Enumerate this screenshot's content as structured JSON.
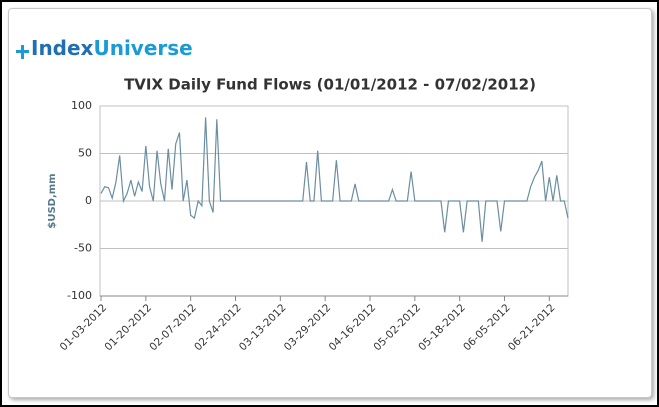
{
  "logo": [
    "Index",
    "Universe"
  ],
  "chart_data": {
    "type": "line",
    "title": "TVIX Daily Fund Flows (01/01/2012 - 07/02/2012)",
    "y_label": "$USD,mm",
    "categories": [
      "01-03-2012",
      null,
      null,
      null,
      null,
      null,
      null,
      null,
      null,
      null,
      null,
      null,
      "01-20-2012",
      null,
      null,
      null,
      null,
      null,
      null,
      null,
      null,
      null,
      null,
      null,
      "02-07-2012",
      null,
      null,
      null,
      null,
      null,
      null,
      null,
      null,
      null,
      null,
      null,
      "02-24-2012",
      null,
      null,
      null,
      null,
      null,
      null,
      null,
      null,
      null,
      null,
      null,
      "03-13-2012",
      null,
      null,
      null,
      null,
      null,
      null,
      null,
      null,
      null,
      null,
      null,
      "03-29-2012",
      null,
      null,
      null,
      null,
      null,
      null,
      null,
      null,
      null,
      null,
      null,
      "04-16-2012",
      null,
      null,
      null,
      null,
      null,
      null,
      null,
      null,
      null,
      null,
      null,
      "05-02-2012",
      null,
      null,
      null,
      null,
      null,
      null,
      null,
      null,
      null,
      null,
      null,
      "05-18-2012",
      null,
      null,
      null,
      null,
      null,
      null,
      null,
      null,
      null,
      null,
      null,
      "06-05-2012",
      null,
      null,
      null,
      null,
      null,
      null,
      null,
      null,
      null,
      null,
      null,
      "06-21-2012",
      null,
      null,
      null,
      null,
      null
    ],
    "values": [
      8,
      15,
      14,
      3,
      20,
      48,
      0,
      8,
      22,
      5,
      20,
      10,
      58,
      15,
      0,
      53,
      18,
      0,
      55,
      12,
      60,
      72,
      0,
      22,
      -15,
      -18,
      0,
      -5,
      88,
      0,
      -12,
      86,
      0,
      0,
      0,
      0,
      0,
      0,
      0,
      0,
      0,
      0,
      0,
      0,
      0,
      0,
      0,
      0,
      0,
      0,
      0,
      0,
      0,
      0,
      0,
      41,
      0,
      0,
      53,
      0,
      0,
      0,
      0,
      43,
      0,
      0,
      0,
      0,
      18,
      0,
      0,
      0,
      0,
      0,
      0,
      0,
      0,
      0,
      12,
      0,
      0,
      0,
      0,
      31,
      0,
      0,
      0,
      0,
      0,
      0,
      0,
      0,
      -33,
      0,
      0,
      0,
      0,
      -33,
      0,
      0,
      0,
      0,
      -43,
      0,
      0,
      0,
      0,
      -32,
      0,
      0,
      0,
      0,
      0,
      0,
      0,
      15,
      25,
      32,
      42,
      0,
      25,
      0,
      27,
      0,
      0,
      -18
    ],
    "color": "#6b8ea0",
    "ylim": [
      -100,
      100
    ],
    "yticks": [
      -100,
      -50,
      0,
      50,
      100
    ],
    "grid": true
  }
}
